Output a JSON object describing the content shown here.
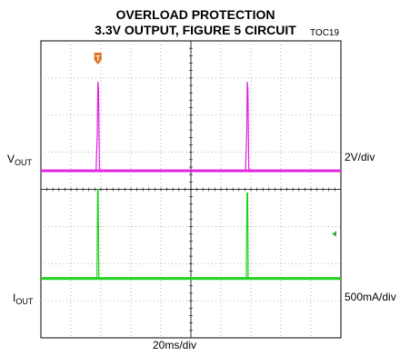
{
  "chart_data": {
    "type": "line",
    "title": "OVERLOAD PROTECTION",
    "subtitle": "3.3V OUTPUT, FIGURE 5 CIRCUIT",
    "figure_id": "TOC19",
    "grid": true,
    "xlim": [
      0,
      10
    ],
    "ylim": [
      0,
      8
    ],
    "xlabel": "20ms/div",
    "trigger_marker": {
      "label": "T",
      "x": 1.9,
      "color": "#e07020"
    },
    "ground_marker": {
      "y": 2.8,
      "color": "#30b030"
    },
    "series": [
      {
        "label_main": "V",
        "label_sub": "OUT",
        "scale": "2V/div",
        "color": "#e020e0",
        "baseline": 4.5,
        "points": [
          [
            0,
            4.5
          ],
          [
            1.84,
            4.5
          ],
          [
            1.88,
            5.5
          ],
          [
            1.9,
            6.9
          ],
          [
            1.92,
            6.7
          ],
          [
            1.95,
            4.5
          ],
          [
            6.82,
            4.5
          ],
          [
            6.86,
            5.5
          ],
          [
            6.88,
            6.9
          ],
          [
            6.9,
            6.7
          ],
          [
            6.93,
            4.5
          ],
          [
            10,
            4.5
          ]
        ]
      },
      {
        "label_main": "I",
        "label_sub": "OUT",
        "scale": "500mA/div",
        "color": "#20d020",
        "baseline": 1.6,
        "points": [
          [
            0,
            1.6
          ],
          [
            1.87,
            1.6
          ],
          [
            1.89,
            4.0
          ],
          [
            1.91,
            4.0
          ],
          [
            1.93,
            1.6
          ],
          [
            6.85,
            1.6
          ],
          [
            6.87,
            3.9
          ],
          [
            6.89,
            3.9
          ],
          [
            6.91,
            1.6
          ],
          [
            10,
            1.6
          ]
        ]
      }
    ]
  }
}
